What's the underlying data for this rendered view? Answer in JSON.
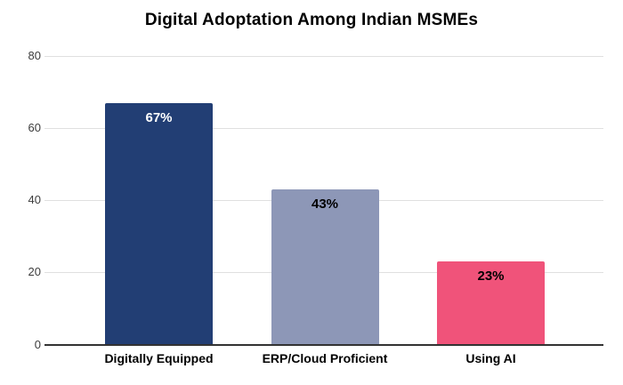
{
  "chart_data": {
    "type": "bar",
    "title": "Digital Adoptation Among Indian MSMEs",
    "categories": [
      "Digitally Equipped",
      "ERP/Cloud Proficient",
      "Using AI"
    ],
    "values": [
      67,
      43,
      23
    ],
    "value_labels": [
      "67%",
      "43%",
      "23%"
    ],
    "bar_colors": [
      "#223E74",
      "#8D97B7",
      "#F0537A"
    ],
    "value_label_colors": [
      "#ffffff",
      "#000000",
      "#000000"
    ],
    "xlabel": "",
    "ylabel": "",
    "ylim": [
      0,
      80
    ],
    "yticks": [
      0,
      20,
      40,
      60,
      80
    ],
    "ytick_labels": [
      "0",
      "20",
      "40",
      "60",
      "80"
    ],
    "grid": true,
    "legend_position": "none",
    "gridline_color": "#e0e0e0",
    "axis_line_color": "#333333",
    "background_color": "#ffffff",
    "title_color": "#000000",
    "tick_label_color": "#3c3c3c"
  }
}
